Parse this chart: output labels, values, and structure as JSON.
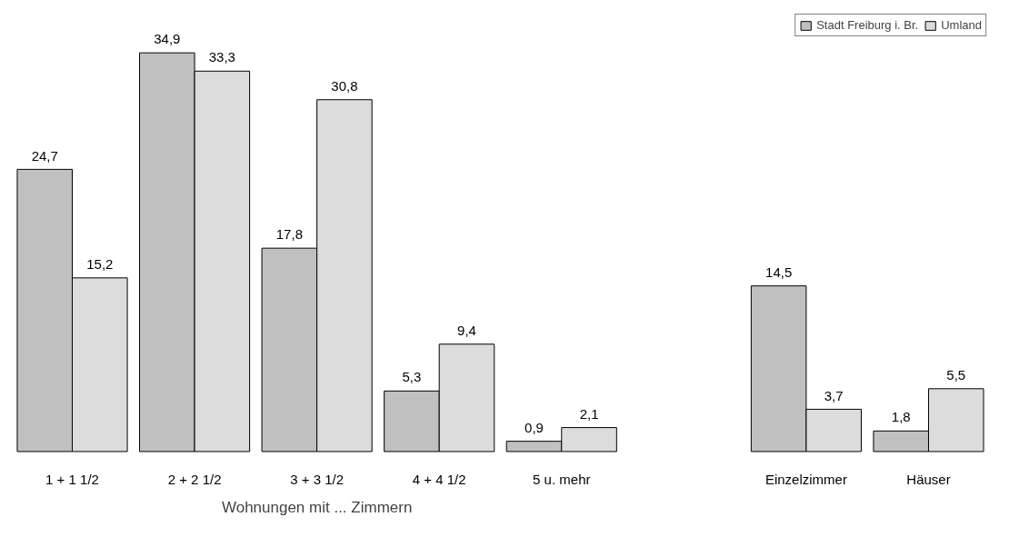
{
  "chart_data": {
    "type": "bar",
    "xlabel": "Wohnungen mit ... Zimmern",
    "categories": [
      "1 + 1 1/2",
      "2 + 2 1/2",
      "3 + 3 1/2",
      "4 + 4 1/2",
      "5 u. mehr",
      null,
      "Einzelzimmer",
      "Häuser"
    ],
    "series": [
      {
        "name": "Stadt Freiburg i. Br.",
        "color": "#c0c0c0",
        "values": [
          24.7,
          34.9,
          17.8,
          5.3,
          0.9,
          null,
          14.5,
          1.8
        ],
        "value_labels": [
          "24,7",
          "34,9",
          "17,8",
          "5,3",
          "0,9",
          null,
          "14,5",
          "1,8"
        ]
      },
      {
        "name": "Umland",
        "color": "#dcdcdc",
        "values": [
          15.2,
          33.3,
          30.8,
          9.4,
          2.1,
          null,
          3.7,
          5.5
        ],
        "value_labels": [
          "15,2",
          "33,3",
          "30,8",
          "9,4",
          "2,1",
          null,
          "3,7",
          "5,5"
        ]
      }
    ],
    "legend": "top right",
    "grid": false
  }
}
